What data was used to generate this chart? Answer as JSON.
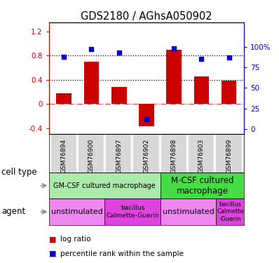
{
  "title": "GDS2180 / AGhsA050902",
  "samples": [
    "GSM76894",
    "GSM76900",
    "GSM76897",
    "GSM76902",
    "GSM76898",
    "GSM76903",
    "GSM76899"
  ],
  "log_ratio": [
    0.18,
    0.7,
    0.28,
    -0.37,
    0.9,
    0.45,
    0.38
  ],
  "percentile_rank": [
    88,
    97,
    93,
    12,
    98,
    85,
    87
  ],
  "bar_color": "#cc0000",
  "dot_color": "#0000cc",
  "ylim_left": [
    -0.5,
    1.35
  ],
  "ylim_right": [
    -6.25,
    130
  ],
  "tick_vals_left": [
    -0.4,
    0.0,
    0.4,
    0.8,
    1.2
  ],
  "tick_labels_left": [
    "-0.4",
    "0",
    "0.4",
    "0.8",
    "1.2"
  ],
  "tick_vals_right": [
    0,
    25,
    50,
    75,
    100
  ],
  "tick_labels_right": [
    "0",
    "25",
    "50",
    "75",
    "100%"
  ],
  "cell_type_groups": [
    {
      "label": "GM-CSF cultured macrophage",
      "span": [
        0,
        4
      ],
      "color": "#aaeaaa",
      "font_size": 7
    },
    {
      "label": "M-CSF cultured\nmacrophage",
      "span": [
        4,
        7
      ],
      "color": "#44dd44",
      "font_size": 8.5
    }
  ],
  "agent_groups": [
    {
      "label": "unstimulated",
      "span": [
        0,
        2
      ],
      "color": "#ee88ee",
      "font_size": 8
    },
    {
      "label": "bacillus\nCalmette-Guerin",
      "span": [
        2,
        4
      ],
      "color": "#dd44dd",
      "font_size": 6.5
    },
    {
      "label": "unstimulated",
      "span": [
        4,
        6
      ],
      "color": "#ee88ee",
      "font_size": 8
    },
    {
      "label": "bacillus\nCalmette\n-Guerin",
      "span": [
        6,
        7
      ],
      "color": "#dd44dd",
      "font_size": 6
    }
  ],
  "cell_type_label": "cell type",
  "agent_label": "agent",
  "legend_red": "log ratio",
  "legend_blue": "percentile rank within the sample",
  "bar_color_dark": "#aa0000",
  "dot_color_dark": "#000099"
}
